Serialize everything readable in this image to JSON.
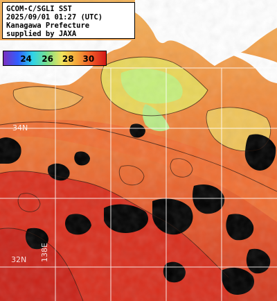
{
  "title_lines": [
    "GCOM-C/SGLI SST",
    "2025/09/01 01:27 (UTC)",
    "Kanagawa Prefecture",
    "supplied by JAXA"
  ],
  "legend": {
    "ticks": [
      "24",
      "26",
      "28",
      "30"
    ],
    "colors": [
      "#7a2fbf",
      "#2f5fff",
      "#2fd4e8",
      "#7be08a",
      "#f2e35c",
      "#f4a63a",
      "#f05a28",
      "#d41818"
    ]
  },
  "grid_labels": {
    "lat_34": "34N",
    "lat_32": "32N",
    "lon_138": "138E"
  },
  "colors": {
    "land": "#ffffff",
    "cloud": "#000000",
    "cool_water": "#c8f07a",
    "warm_water": "#f07a3a",
    "hot_water": "#d42a1f",
    "grid": "#ffffff"
  }
}
